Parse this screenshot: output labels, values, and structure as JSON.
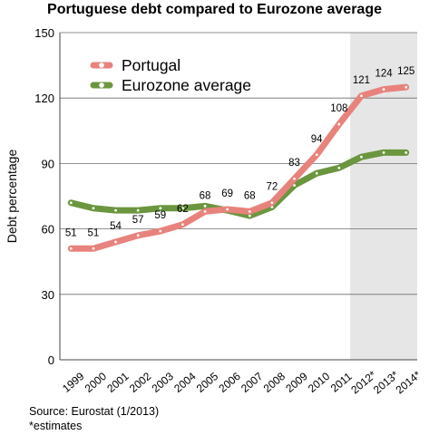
{
  "chart_data": {
    "type": "line",
    "title": "Portuguese debt compared to Eurozone average",
    "ylabel": "Debt percentage",
    "xlabel": "",
    "ylim": [
      0,
      150
    ],
    "yticks": [
      0,
      30,
      60,
      90,
      120,
      150
    ],
    "grid": true,
    "legend_position": "top-left",
    "categories": [
      "1999",
      "2000",
      "2001",
      "2002",
      "2003",
      "2004",
      "2005",
      "2006",
      "2007",
      "2008",
      "2009",
      "2010",
      "2011",
      "2012*",
      "2013*",
      "2014*"
    ],
    "shaded_region": [
      "2012*",
      "2014*"
    ],
    "series": [
      {
        "name": "Portugal",
        "color": "#e8827c",
        "values": [
          51,
          51,
          54,
          57,
          59,
          62,
          68,
          69,
          68,
          72,
          83,
          94,
          108,
          121,
          124,
          125
        ],
        "data_labels": [
          "51",
          "51",
          "54",
          "57",
          "59",
          "62",
          "68",
          "69",
          "68",
          "72",
          "83",
          "94",
          "108",
          "121",
          "124",
          "125"
        ]
      },
      {
        "name": "Eurozone average",
        "color": "#6b963f",
        "values": [
          72,
          69.5,
          68.5,
          68.5,
          69.5,
          69.5,
          70.5,
          68.5,
          66,
          70,
          80,
          85.5,
          88,
          93,
          95,
          95
        ]
      }
    ]
  },
  "footer": {
    "source": "Source: Eurostat (1/2013)",
    "note": "*estimates"
  }
}
